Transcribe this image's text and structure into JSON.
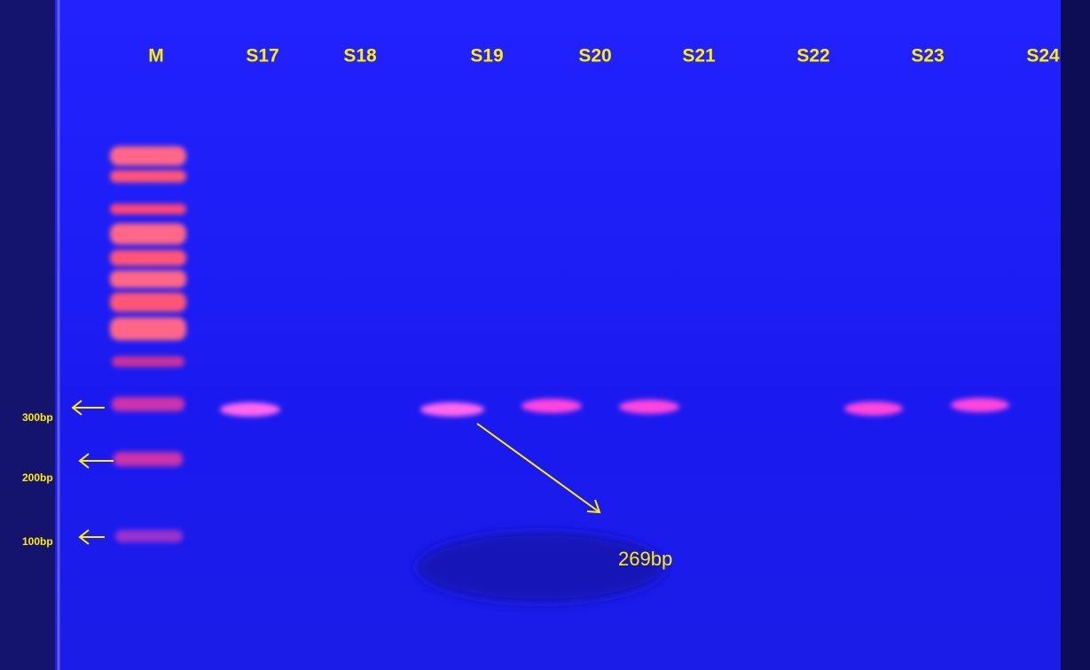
{
  "lanes": [
    "M",
    "S17",
    "S18",
    "S19",
    "S20",
    "S21",
    "S22",
    "S23",
    "S24"
  ],
  "markers": [
    "300bp",
    "200bp",
    "100bp"
  ],
  "annotation": "269bp"
}
